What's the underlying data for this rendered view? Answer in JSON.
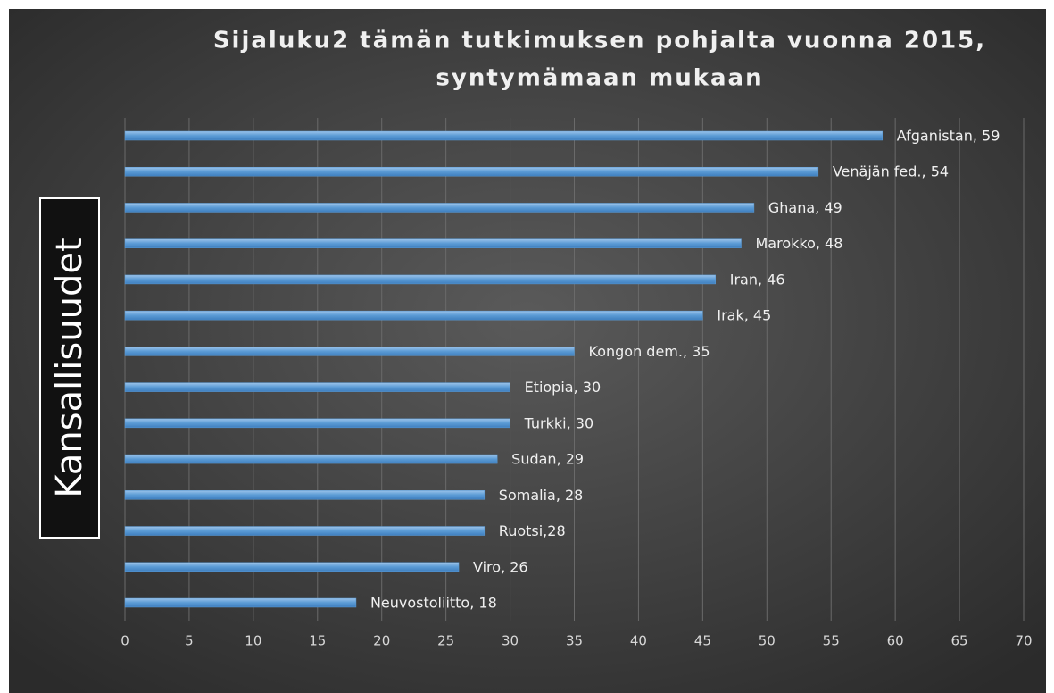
{
  "chart_data": {
    "type": "bar",
    "orientation": "horizontal",
    "title": [
      "Sijaluku2 tämän tutkimuksen pohjalta vuonna 2015,",
      "syntymämaan mukaan"
    ],
    "y_label": "Kansallisuudet",
    "values": [
      59,
      54,
      49,
      48,
      46,
      45,
      35,
      30,
      30,
      29,
      28,
      28,
      26,
      18
    ],
    "value_labels": [
      "Afganistan, 59",
      "Venäjän fed., 54",
      "Ghana, 49",
      "Marokko, 48",
      "Iran, 46",
      "Irak, 45",
      "Kongon dem., 35",
      "Etiopia, 30",
      "Turkki, 30",
      "Sudan, 29",
      "Somalia, 28",
      "Ruotsi,28",
      "Viro, 26",
      "Neuvostoliitto, 18"
    ],
    "color": "#5b9bd5",
    "xlim": [
      0,
      70
    ],
    "xticks": [
      0,
      5,
      10,
      15,
      20,
      25,
      30,
      35,
      40,
      45,
      50,
      55,
      60,
      65,
      70
    ],
    "grid": true
  }
}
